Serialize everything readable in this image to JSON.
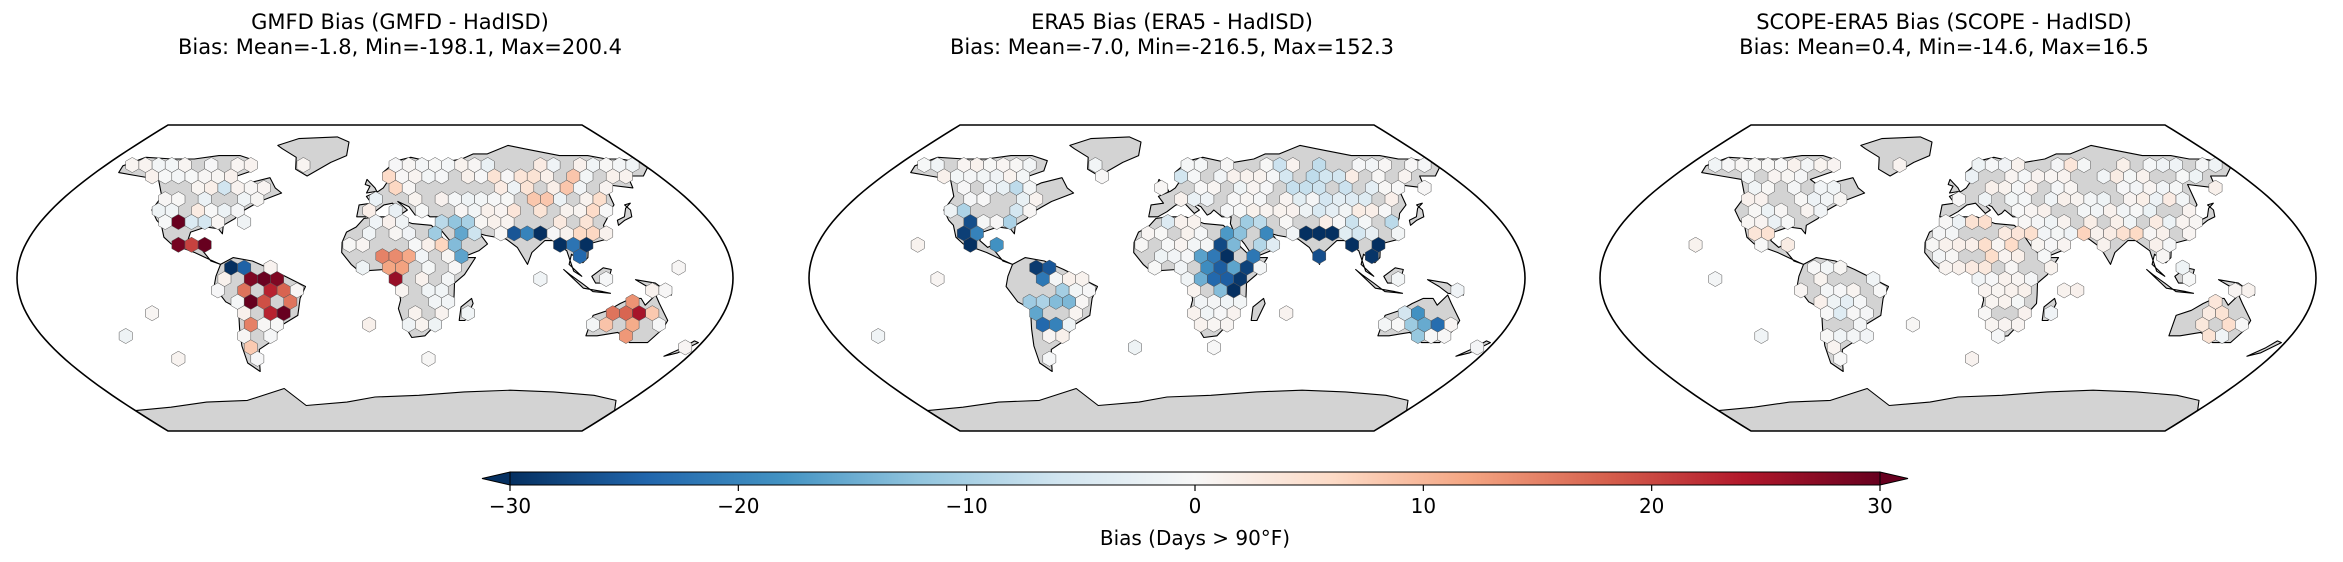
{
  "panels": [
    {
      "title": "GMFD Bias (GMFD - HadISD)",
      "stats": "Bias: Mean=-1.8, Min=-198.1, Max=200.4",
      "mean": -1.8,
      "min": -198.1,
      "max": 200.4
    },
    {
      "title": "ERA5 Bias (ERA5 - HadISD)",
      "stats": "Bias: Mean=-7.0, Min=-216.5, Max=152.3",
      "mean": -7.0,
      "min": -216.5,
      "max": 152.3
    },
    {
      "title": "SCOPE-ERA5 Bias (SCOPE - HadISD)",
      "stats": "Bias: Mean=0.4, Min=-14.6, Max=16.5",
      "mean": 0.4,
      "min": -14.6,
      "max": 16.5
    }
  ],
  "colorbar": {
    "label": "Bias (Days > 90°F)",
    "ticks": [
      "−30",
      "−20",
      "−10",
      "0",
      "10",
      "20",
      "30"
    ],
    "tick_values": [
      -30,
      -20,
      -10,
      0,
      10,
      20,
      30
    ],
    "range": [
      -30,
      30
    ],
    "colormap": "RdBu_r",
    "extend": "both",
    "colors": [
      "#053061",
      "#2166ac",
      "#4393c3",
      "#92c5de",
      "#d1e5f0",
      "#f7f7f7",
      "#fddbc7",
      "#f4a582",
      "#d6604d",
      "#b2182b",
      "#67001f"
    ]
  },
  "map": {
    "projection": "Robinson",
    "land_color": "#d3d3d3",
    "ocean_color": "#ffffff"
  }
}
